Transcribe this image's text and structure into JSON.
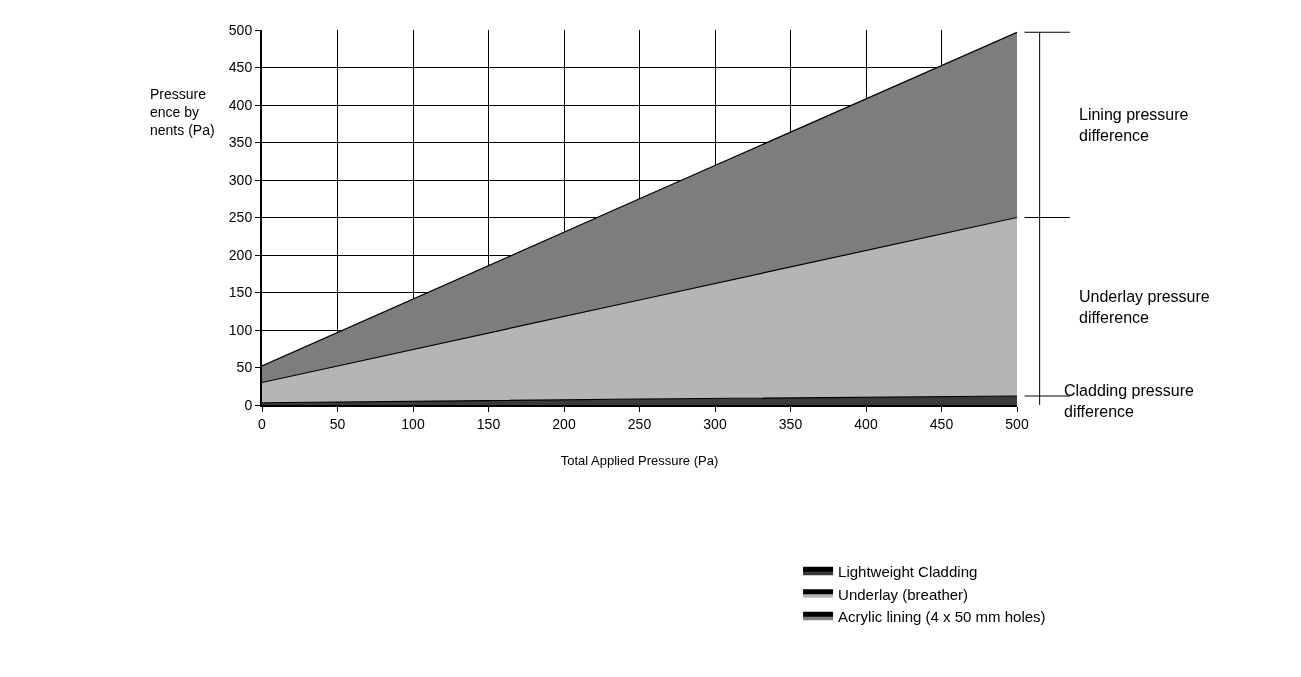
{
  "chart_data": {
    "type": "area",
    "stacked": true,
    "xlabel": "Total Applied Pressure (Pa)",
    "ylabel": "Pressure\nence by\nnents (Pa)",
    "x": [
      0,
      250,
      500
    ],
    "series": [
      {
        "name": "Lightweight Cladding",
        "color": "#3a3a3a",
        "values": [
          3,
          8,
          12
        ]
      },
      {
        "name": "Underlay (breather)",
        "color": "#b5b5b5",
        "values": [
          27,
          132,
          238
        ]
      },
      {
        "name": "Acrylic lining (4 x 50 mm holes)",
        "color": "#7d7d7d",
        "values": [
          22,
          135,
          247
        ]
      }
    ],
    "xlim": [
      0,
      500
    ],
    "xticks": [
      0,
      50,
      100,
      150,
      200,
      250,
      300,
      350,
      400,
      450,
      500
    ],
    "ylim": [
      0,
      500
    ],
    "yticks": [
      0,
      50,
      100,
      150,
      200,
      250,
      300,
      350,
      400,
      450,
      500
    ],
    "grid": true,
    "legend": "bottom right",
    "marker": "none",
    "annotations": [
      "Lining pressure\ndifference",
      "Underlay pressure\ndifference",
      "Cladding pressure\ndifference"
    ]
  }
}
